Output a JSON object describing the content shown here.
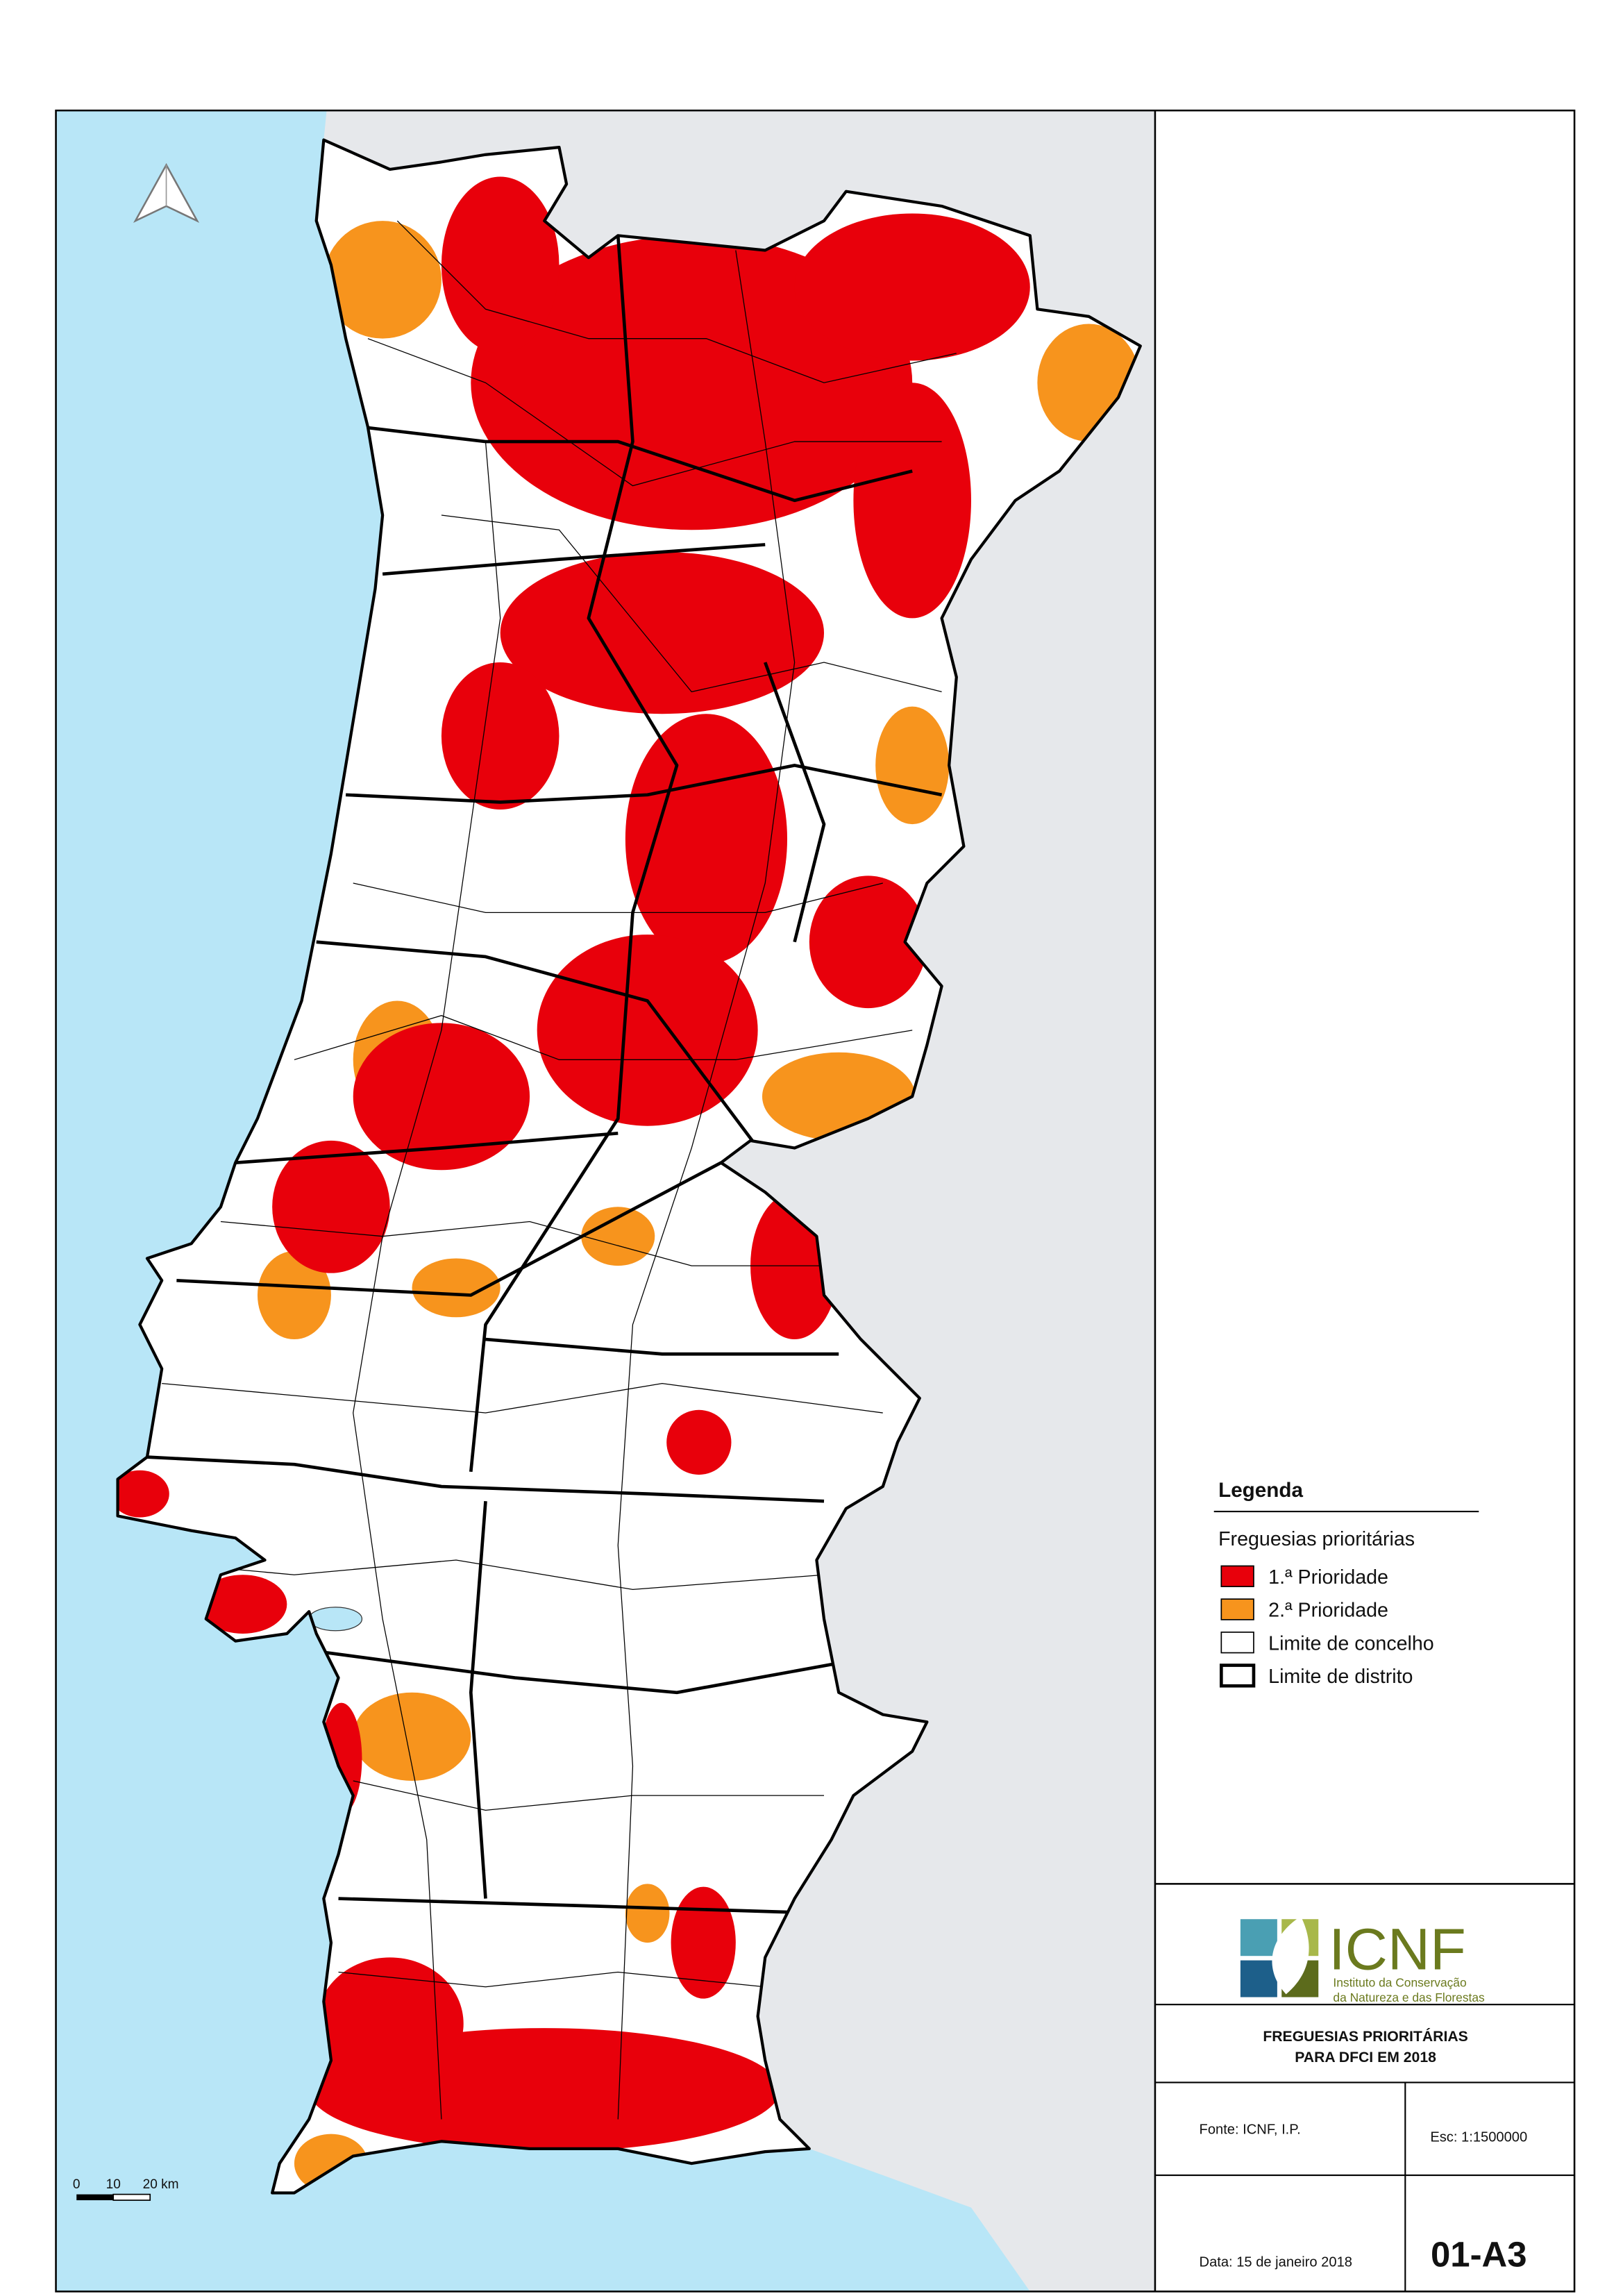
{
  "legend": {
    "title": "Legenda",
    "subtitle": "Freguesias prioritárias",
    "items": [
      {
        "label": "1.ª Prioridade",
        "color": "#e8000b",
        "border_width": 0.8
      },
      {
        "label": "2.ª Prioridade",
        "color": "#f7941d",
        "border_width": 0.8
      },
      {
        "label": "Limite de concelho",
        "color": "#ffffff",
        "border_width": 0.8
      },
      {
        "label": "Limite de distrito",
        "color": "#ffffff",
        "border_width": 2.2
      }
    ]
  },
  "scale_bar": {
    "labels": [
      "0",
      "10",
      "20 km"
    ]
  },
  "organization": {
    "acronym": "ICNF",
    "name": [
      "Instituto da Conservação",
      "da Natureza e das Florestas"
    ]
  },
  "title": [
    "FREGUESIAS PRIORITÁRIAS",
    "PARA DFCI EM 2018"
  ],
  "source": "Fonte: ICNF, I.P.",
  "scale": "Esc: 1:1500000",
  "date": "Data: 15 de janeiro 2018",
  "sheet": "01-A3"
}
